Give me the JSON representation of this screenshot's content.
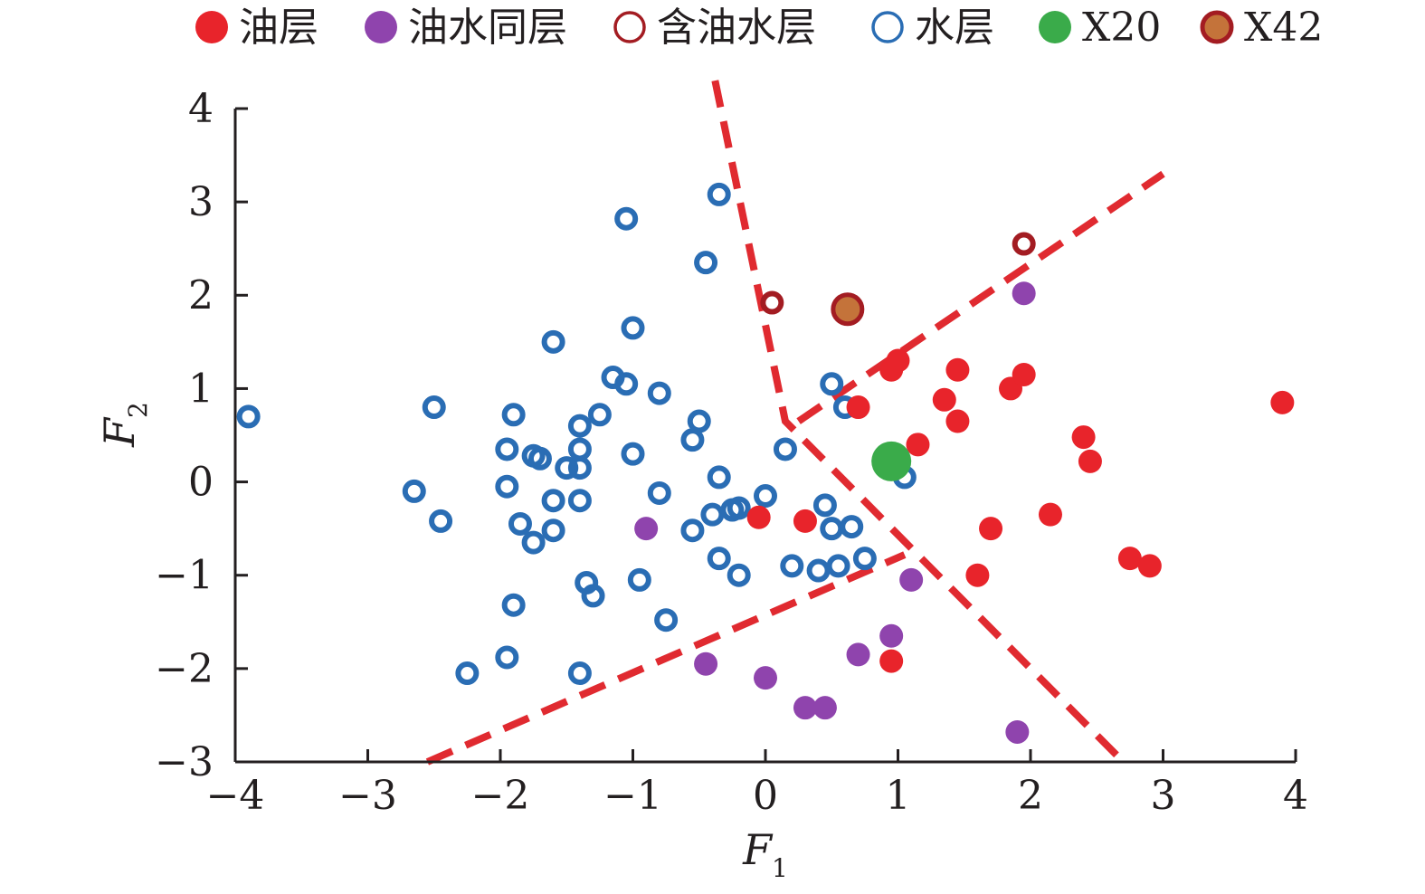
{
  "chart_data": {
    "type": "scatter",
    "xlabel": "F",
    "xlabel_sub": "1",
    "ylabel": "F",
    "ylabel_sub": "2",
    "xlim": [
      -4,
      4
    ],
    "ylim": [
      -3,
      4
    ],
    "x_ticks": [
      -4,
      -3,
      -2,
      -1,
      0,
      1,
      2,
      3,
      4
    ],
    "y_ticks": [
      -3,
      -2,
      -1,
      0,
      1,
      2,
      3,
      4
    ],
    "x_tick_labels": [
      "−4",
      "−3",
      "−2",
      "−1",
      "0",
      "1",
      "2",
      "3",
      "4"
    ],
    "y_tick_labels": [
      "−3",
      "−2",
      "−1",
      "0",
      "1",
      "2",
      "3",
      "4"
    ],
    "grid": false,
    "legend_position": "top",
    "series": [
      {
        "name": "油层",
        "marker": "filled-circle",
        "color": "#e8242b",
        "points": [
          [
            0.95,
            1.2
          ],
          [
            1.0,
            1.3
          ],
          [
            0.7,
            0.8
          ],
          [
            1.15,
            0.4
          ],
          [
            1.45,
            1.2
          ],
          [
            1.35,
            0.88
          ],
          [
            1.45,
            0.65
          ],
          [
            1.85,
            1.0
          ],
          [
            1.95,
            1.15
          ],
          [
            2.4,
            0.48
          ],
          [
            2.45,
            0.22
          ],
          [
            2.15,
            -0.35
          ],
          [
            1.7,
            -0.5
          ],
          [
            1.6,
            -1.0
          ],
          [
            2.75,
            -0.82
          ],
          [
            2.9,
            -0.9
          ],
          [
            3.9,
            0.85
          ],
          [
            0.3,
            -0.42
          ],
          [
            -0.05,
            -0.38
          ],
          [
            0.95,
            -1.92
          ]
        ]
      },
      {
        "name": "油水同层",
        "marker": "filled-circle",
        "color": "#8f44ad",
        "points": [
          [
            1.95,
            2.02
          ],
          [
            -0.9,
            -0.5
          ],
          [
            1.1,
            -1.05
          ],
          [
            0.95,
            -1.65
          ],
          [
            0.7,
            -1.85
          ],
          [
            -0.45,
            -1.95
          ],
          [
            0.0,
            -2.1
          ],
          [
            0.3,
            -2.42
          ],
          [
            0.45,
            -2.42
          ],
          [
            1.9,
            -2.68
          ]
        ]
      },
      {
        "name": "含油水层",
        "marker": "open-circle",
        "color": "#a31c22",
        "points": [
          [
            1.95,
            2.55
          ],
          [
            0.05,
            1.92
          ]
        ]
      },
      {
        "name": "水层",
        "marker": "open-circle",
        "color": "#2a6db4",
        "points": [
          [
            -3.9,
            0.7
          ],
          [
            -2.5,
            0.8
          ],
          [
            -2.65,
            -0.1
          ],
          [
            -2.45,
            -0.42
          ],
          [
            -1.95,
            0.35
          ],
          [
            -1.9,
            0.72
          ],
          [
            -1.95,
            -0.05
          ],
          [
            -1.85,
            -0.45
          ],
          [
            -1.75,
            -0.65
          ],
          [
            -1.75,
            0.28
          ],
          [
            -1.7,
            0.25
          ],
          [
            -1.6,
            1.5
          ],
          [
            -1.6,
            -0.2
          ],
          [
            -1.6,
            -0.52
          ],
          [
            -1.5,
            0.15
          ],
          [
            -1.4,
            0.35
          ],
          [
            -1.4,
            0.6
          ],
          [
            -1.4,
            0.15
          ],
          [
            -1.4,
            -0.2
          ],
          [
            -1.35,
            -1.08
          ],
          [
            -1.3,
            -1.22
          ],
          [
            -1.25,
            0.72
          ],
          [
            -1.15,
            1.12
          ],
          [
            -1.05,
            2.82
          ],
          [
            -1.05,
            1.05
          ],
          [
            -1.0,
            1.65
          ],
          [
            -1.0,
            0.3
          ],
          [
            -0.95,
            -1.05
          ],
          [
            -0.8,
            0.95
          ],
          [
            -0.8,
            -0.12
          ],
          [
            -0.75,
            -1.48
          ],
          [
            -0.55,
            0.45
          ],
          [
            -0.5,
            0.65
          ],
          [
            -0.55,
            -0.52
          ],
          [
            -0.45,
            2.35
          ],
          [
            -0.35,
            3.08
          ],
          [
            -0.35,
            0.05
          ],
          [
            -0.35,
            -0.82
          ],
          [
            -0.4,
            -0.35
          ],
          [
            -0.2,
            -0.28
          ],
          [
            -0.2,
            -1.0
          ],
          [
            -0.25,
            -0.3
          ],
          [
            0.0,
            -0.15
          ],
          [
            0.15,
            0.35
          ],
          [
            0.2,
            -0.9
          ],
          [
            0.4,
            -0.95
          ],
          [
            0.45,
            -0.25
          ],
          [
            0.5,
            -0.5
          ],
          [
            0.55,
            -0.9
          ],
          [
            0.65,
            -0.48
          ],
          [
            0.75,
            -0.82
          ],
          [
            0.5,
            1.05
          ],
          [
            0.6,
            0.8
          ],
          [
            1.05,
            0.05
          ],
          [
            -1.9,
            -1.32
          ],
          [
            -1.95,
            -1.88
          ],
          [
            -2.25,
            -2.05
          ],
          [
            -1.4,
            -2.05
          ]
        ]
      },
      {
        "name": "X20",
        "marker": "filled-circle-large",
        "color": "#3aab4a",
        "points": [
          [
            0.95,
            0.22
          ]
        ]
      },
      {
        "name": "X42",
        "marker": "filled-circle-large-outlined",
        "color": "#c4733a",
        "edge_color": "#a31c22",
        "points": [
          [
            0.62,
            1.85
          ]
        ]
      }
    ],
    "boundaries": {
      "color": "#e02a30",
      "style": "dashed",
      "lines": [
        [
          [
            -0.38,
            4.3
          ],
          [
            0.15,
            0.65
          ],
          [
            2.7,
            -3.0
          ]
        ],
        [
          [
            -2.55,
            -3.0
          ],
          [
            1.05,
            -0.78
          ]
        ],
        [
          [
            0.25,
            0.65
          ],
          [
            3.0,
            3.3
          ]
        ]
      ]
    }
  }
}
